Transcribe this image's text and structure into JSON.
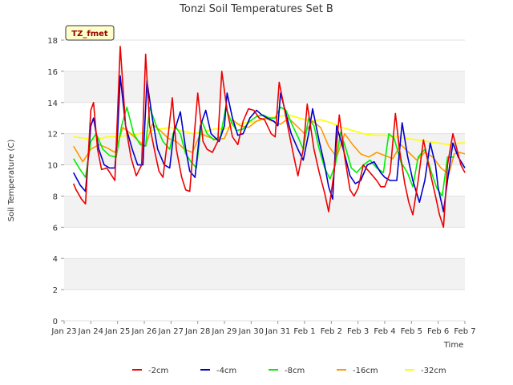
{
  "chart_data": {
    "type": "line",
    "title": "Tonzi Soil Temperatures Set B",
    "xlabel": "Time",
    "ylabel": "Soil Temperature (C)",
    "badge": "TZ_fmet",
    "ylim": [
      0,
      18
    ],
    "yticks": [
      0,
      2,
      4,
      6,
      8,
      10,
      12,
      14,
      16,
      18
    ],
    "xlim": [
      0,
      15
    ],
    "xticks": [
      {
        "pos": 0,
        "label": "Jan 23"
      },
      {
        "pos": 1,
        "label": "Jan 24"
      },
      {
        "pos": 2,
        "label": "Jan 25"
      },
      {
        "pos": 3,
        "label": "Jan 26"
      },
      {
        "pos": 4,
        "label": "Jan 27"
      },
      {
        "pos": 5,
        "label": "Jan 28"
      },
      {
        "pos": 6,
        "label": "Jan 29"
      },
      {
        "pos": 7,
        "label": "Jan 30"
      },
      {
        "pos": 8,
        "label": "Jan 31"
      },
      {
        "pos": 9,
        "label": "Feb 1"
      },
      {
        "pos": 10,
        "label": "Feb 2"
      },
      {
        "pos": 11,
        "label": "Feb 3"
      },
      {
        "pos": 12,
        "label": "Feb 4"
      },
      {
        "pos": 13,
        "label": "Feb 5"
      },
      {
        "pos": 14,
        "label": "Feb 6"
      },
      {
        "pos": 15,
        "label": "Feb 7"
      }
    ],
    "legend_position": "bottom",
    "grid": "horizontal bands",
    "series": [
      {
        "name": "-2cm",
        "color": "#ee0000",
        "x": [
          0.35,
          0.45,
          0.65,
          0.8,
          1.0,
          1.1,
          1.25,
          1.4,
          1.6,
          1.75,
          1.9,
          2.1,
          2.3,
          2.5,
          2.7,
          2.9,
          3.05,
          3.2,
          3.4,
          3.55,
          3.7,
          3.9,
          4.05,
          4.2,
          4.4,
          4.55,
          4.7,
          4.9,
          5.0,
          5.2,
          5.35,
          5.55,
          5.75,
          5.9,
          6.1,
          6.3,
          6.5,
          6.7,
          6.9,
          7.1,
          7.3,
          7.5,
          7.75,
          7.9,
          8.05,
          8.2,
          8.4,
          8.6,
          8.75,
          8.95,
          9.1,
          9.35,
          9.55,
          9.75,
          9.9,
          10.1,
          10.3,
          10.5,
          10.7,
          10.85,
          11.0,
          11.2,
          11.45,
          11.7,
          11.85,
          12.0,
          12.2,
          12.4,
          12.55,
          12.75,
          12.9,
          13.05,
          13.25,
          13.45,
          13.7,
          13.9,
          14.05,
          14.2,
          14.35,
          14.55
        ],
        "values": [
          8.8,
          8.4,
          7.8,
          7.5,
          13.5,
          14,
          11,
          9.7,
          9.8,
          9.4,
          9.0,
          17.6,
          12.5,
          10.5,
          9.3,
          10.0,
          17.1,
          12.5,
          10.8,
          9.6,
          9.2,
          12,
          14.3,
          11,
          9.2,
          8.4,
          8.3,
          12.5,
          14.6,
          11.5,
          11,
          10.8,
          11.5,
          16,
          13.5,
          11.8,
          11.3,
          12.8,
          13.6,
          13.5,
          13,
          12.9,
          12,
          11.8,
          15.3,
          14,
          12.2,
          10.5,
          9.3,
          11,
          13.9,
          11,
          9.5,
          8.2,
          7,
          9.5,
          13.2,
          10.5,
          8.4,
          8.0,
          8.5,
          10,
          9.5,
          9.0,
          8.6,
          8.6,
          9.5,
          13.3,
          11,
          8.8,
          7.6,
          6.8,
          9.0,
          11.6,
          9.5,
          8.0,
          6.8,
          6.0,
          10,
          12
        ],
        "extra": [
          [
            14.7,
            11
          ],
          [
            14.85,
            10
          ],
          [
            15.0,
            9.5
          ]
        ]
      },
      {
        "name": "-4cm",
        "color": "#0000cc",
        "x": [
          0.35,
          0.6,
          0.8,
          1.0,
          1.1,
          1.3,
          1.5,
          1.7,
          1.9,
          2.0,
          2.1,
          2.3,
          2.55,
          2.75,
          2.95,
          3.1,
          3.3,
          3.5,
          3.75,
          3.95,
          4.1,
          4.35,
          4.55,
          4.7,
          4.9,
          5.1,
          5.3,
          5.5,
          5.8,
          6.0,
          6.1,
          6.3,
          6.5,
          6.7,
          6.95,
          7.2,
          7.4,
          7.6,
          7.85,
          8.0,
          8.1,
          8.3,
          8.5,
          8.75,
          8.95,
          9.15,
          9.3,
          9.55,
          9.75,
          9.9,
          10.05,
          10.2,
          10.45,
          10.7,
          10.9,
          11.1,
          11.35,
          11.6,
          11.85,
          12.0,
          12.2,
          12.45,
          12.65,
          12.85,
          13.05,
          13.3,
          13.5,
          13.7,
          13.9,
          14.0,
          14.2,
          14.35,
          14.55,
          14.75,
          15.0
        ],
        "values": [
          9.5,
          8.7,
          8.3,
          12.5,
          13,
          11,
          10,
          9.8,
          9.8,
          12,
          15.7,
          12.5,
          11,
          10,
          10,
          15.4,
          13,
          11,
          10,
          9.8,
          12,
          13.4,
          11,
          9.6,
          9.2,
          12.5,
          13.5,
          12,
          11.5,
          12.5,
          14.6,
          13,
          11.9,
          12,
          13,
          13.5,
          13.2,
          13,
          12.8,
          12.5,
          14.6,
          13.3,
          12,
          11,
          10.3,
          12,
          13.6,
          11.5,
          10,
          8.6,
          7.8,
          12.5,
          11,
          9.3,
          8.8,
          9,
          10,
          10.2,
          9.5,
          9.2,
          9.0,
          9.0,
          12.7,
          10.6,
          9,
          7.6,
          9,
          11.4,
          10,
          8.5,
          7,
          9,
          11.4,
          10.5,
          9.8
        ],
        "extra": []
      },
      {
        "name": "-8cm",
        "color": "#00ee00",
        "x": [
          0.35,
          0.6,
          0.8,
          1.0,
          1.2,
          1.45,
          1.7,
          1.95,
          2.15,
          2.35,
          2.6,
          2.85,
          3.05,
          3.2,
          3.45,
          3.7,
          3.95,
          4.15,
          4.35,
          4.55,
          4.75,
          4.95,
          5.15,
          5.35,
          5.6,
          5.85,
          6.05,
          6.25,
          6.45,
          6.7,
          6.95,
          7.2,
          7.45,
          7.7,
          7.9,
          8.1,
          8.3,
          8.55,
          8.75,
          8.95,
          9.15,
          9.35,
          9.55,
          9.75,
          9.95,
          10.15,
          10.35,
          10.55,
          10.75,
          10.95,
          11.2,
          11.45,
          11.7,
          11.95,
          12.15,
          12.35,
          12.6,
          12.85,
          13.05,
          13.25,
          13.5,
          13.75,
          13.95,
          14.15,
          14.35,
          14.6
        ],
        "values": [
          10.4,
          9.7,
          9.2,
          11.5,
          12,
          11,
          10.6,
          10.5,
          12.5,
          13.7,
          12,
          11.3,
          11.2,
          13.7,
          12.5,
          11.5,
          11,
          12.5,
          12,
          10.7,
          10.2,
          9.8,
          12.8,
          12,
          11.6,
          11.8,
          13.7,
          12.8,
          12.2,
          12.3,
          12.8,
          13.1,
          13.2,
          13,
          13.0,
          13.7,
          13.5,
          12.5,
          11.8,
          11,
          13,
          12.5,
          11,
          9.8,
          9.1,
          10,
          12.1,
          11,
          9.8,
          9.5,
          10,
          10.3,
          9.8,
          9.5,
          12,
          11.7,
          10.2,
          9.5,
          8.6,
          10.5,
          11,
          9.5,
          8.5,
          8.0,
          10.5,
          10.5
        ],
        "extra": []
      },
      {
        "name": "-16cm",
        "color": "#ff9900",
        "x": [
          0.35,
          0.7,
          1.0,
          1.3,
          1.6,
          1.9,
          2.2,
          2.5,
          2.8,
          3.05,
          3.3,
          3.6,
          3.9,
          4.2,
          4.5,
          4.8,
          5.1,
          5.4,
          5.7,
          6.0,
          6.3,
          6.6,
          6.9,
          7.2,
          7.5,
          7.8,
          8.1,
          8.4,
          8.7,
          9.0,
          9.3,
          9.6,
          9.9,
          10.2,
          10.5,
          10.8,
          11.1,
          11.4,
          11.7,
          12.0,
          12.3,
          12.6,
          12.9,
          13.2,
          13.5,
          13.8,
          14.1,
          14.4,
          14.6
        ],
        "values": [
          11.2,
          10.2,
          11,
          11.3,
          11.1,
          10.8,
          12.4,
          12,
          11.5,
          11.2,
          12.6,
          12.2,
          11.7,
          11.5,
          11,
          10.8,
          12,
          11.8,
          11.6,
          11.7,
          12.9,
          12.5,
          12.4,
          12.8,
          13,
          12.8,
          12.6,
          13.0,
          12.5,
          12.0,
          12.8,
          12.4,
          11.2,
          10.5,
          12,
          11.3,
          10.7,
          10.5,
          10.8,
          10.6,
          10.4,
          11.3,
          10.8,
          10.3,
          10.8,
          10.5,
          9.8,
          9.4,
          10.7
        ],
        "extra": [
          [
            14.8,
            10.8
          ],
          [
            15.0,
            10.7
          ]
        ]
      },
      {
        "name": "-32cm",
        "color": "#ffff00",
        "x": [
          0.35,
          0.8,
          1.2,
          1.6,
          2.0,
          2.4,
          2.8,
          3.2,
          3.6,
          4.0,
          4.4,
          4.8,
          5.2,
          5.6,
          6.0,
          6.4,
          6.8,
          7.2,
          7.6,
          8.0,
          8.4,
          8.8,
          9.2,
          9.6,
          10.0,
          10.4,
          10.8,
          11.2,
          11.6,
          12.0,
          12.4,
          12.8,
          13.2,
          13.6,
          14.0,
          14.4,
          14.8,
          15.0
        ],
        "values": [
          11.8,
          11.7,
          11.6,
          11.8,
          11.8,
          11.9,
          12.0,
          12.2,
          12.3,
          12.4,
          12.2,
          12.0,
          12.1,
          12.3,
          12.3,
          12.6,
          12.7,
          12.8,
          13.0,
          13.1,
          13.2,
          13.0,
          12.8,
          12.9,
          12.7,
          12.4,
          12.2,
          12.0,
          11.9,
          11.9,
          11.8,
          11.7,
          11.6,
          11.5,
          11.4,
          11.3,
          11.4,
          11.4
        ],
        "extra": []
      }
    ]
  }
}
